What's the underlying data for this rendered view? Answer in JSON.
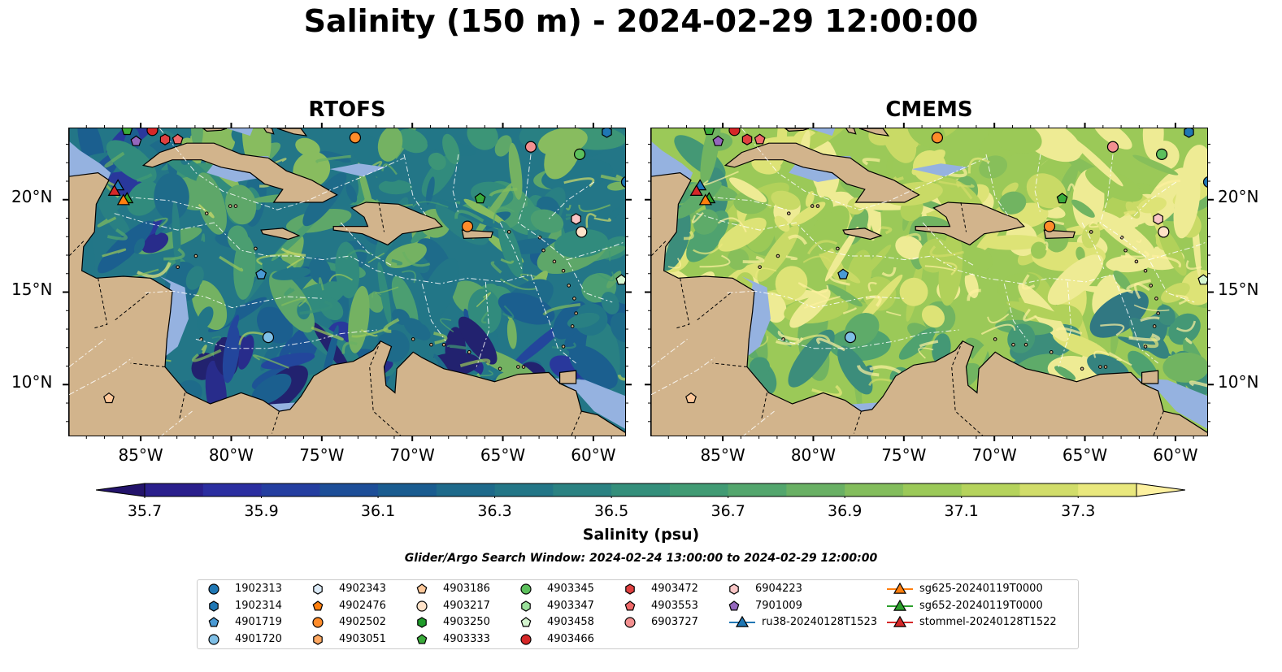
{
  "title": "Salinity (150 m) - 2024-02-29 12:00:00",
  "panels": [
    {
      "name": "rtofs",
      "title": "RTOFS",
      "palette_bias": 0.0
    },
    {
      "name": "cmems",
      "title": "CMEMS",
      "palette_bias": 0.35
    }
  ],
  "lat_ticks": [
    "20°N",
    "15°N",
    "10°N"
  ],
  "lon_ticks": [
    "85°W",
    "80°W",
    "75°W",
    "70°W",
    "65°W",
    "60°W"
  ],
  "colorbar": {
    "label": "Salinity (psu)",
    "ticks": [
      "35.7",
      "35.9",
      "36.1",
      "36.3",
      "36.5",
      "36.7",
      "36.9",
      "37.1",
      "37.3"
    ],
    "colors": [
      "#23136b",
      "#2a1f8c",
      "#2b2ea0",
      "#243ea0",
      "#1d4e98",
      "#1a5c90",
      "#1e6a8b",
      "#237687",
      "#2b8282",
      "#348f7b",
      "#419b74",
      "#53a66d",
      "#69b064",
      "#83bd5c",
      "#9bc958",
      "#b5d35c",
      "#d1dd6a",
      "#e9e87d",
      "#fdf1a0"
    ]
  },
  "search_window": "Glider/Argo Search Window: 2024-02-24 13:00:00 to 2024-02-29 12:00:00",
  "legend": [
    {
      "label": "1902313",
      "marker": "circle",
      "color": "#1f77b4"
    },
    {
      "label": "1902314",
      "marker": "hexagon",
      "color": "#1f77b4"
    },
    {
      "label": "4901719",
      "marker": "pentagon",
      "color": "#4a9ad4"
    },
    {
      "label": "4901720",
      "marker": "circle",
      "color": "#7fbfe6"
    },
    {
      "label": "4902343",
      "marker": "hexagon",
      "color": "#dbeaf7"
    },
    {
      "label": "4902476",
      "marker": "pentagon",
      "color": "#ff7f0e"
    },
    {
      "label": "4902502",
      "marker": "circle",
      "color": "#ff8c2a"
    },
    {
      "label": "4903051",
      "marker": "hexagon",
      "color": "#ffa861"
    },
    {
      "label": "4903186",
      "marker": "pentagon",
      "color": "#ffc89a"
    },
    {
      "label": "4903217",
      "marker": "circle",
      "color": "#ffe2c8"
    },
    {
      "label": "4903250",
      "marker": "hexagon",
      "color": "#1f9b2a"
    },
    {
      "label": "4903333",
      "marker": "pentagon",
      "color": "#3aab3a"
    },
    {
      "label": "4903345",
      "marker": "circle",
      "color": "#5cc05c"
    },
    {
      "label": "4903347",
      "marker": "hexagon",
      "color": "#9ae09a"
    },
    {
      "label": "4903458",
      "marker": "pentagon",
      "color": "#d4f5cf"
    },
    {
      "label": "4903466",
      "marker": "circle",
      "color": "#d62728"
    },
    {
      "label": "4903472",
      "marker": "hexagon",
      "color": "#e04040"
    },
    {
      "label": "4903553",
      "marker": "pentagon",
      "color": "#f06a6a"
    },
    {
      "label": "6903727",
      "marker": "circle",
      "color": "#f39090"
    },
    {
      "label": "6904223",
      "marker": "hexagon",
      "color": "#f9c6c6"
    },
    {
      "label": "7901009",
      "marker": "pentagon",
      "color": "#9467bd"
    },
    {
      "label": "ru38-20240128T1523",
      "marker": "triangle-line",
      "color": "#1f77b4"
    },
    {
      "label": "sg625-20240119T0000",
      "marker": "triangle-line",
      "color": "#ff7f0e"
    },
    {
      "label": "sg652-20240119T0000",
      "marker": "triangle-line",
      "color": "#2ca02c"
    },
    {
      "label": "stommel-20240128T1522",
      "marker": "triangle-line",
      "color": "#d62728"
    }
  ],
  "observations": [
    {
      "lon": -85.8,
      "lat": 23.8,
      "marker": "pentagon",
      "color": "#3aab3a"
    },
    {
      "lon": -84.4,
      "lat": 23.8,
      "marker": "circle",
      "color": "#d62728"
    },
    {
      "lon": -85.3,
      "lat": 23.2,
      "marker": "pentagon",
      "color": "#9467bd"
    },
    {
      "lon": -83.7,
      "lat": 23.3,
      "marker": "hexagon",
      "color": "#e04040"
    },
    {
      "lon": -83.0,
      "lat": 23.3,
      "marker": "pentagon",
      "color": "#f06a6a"
    },
    {
      "lon": -73.2,
      "lat": 23.4,
      "marker": "circle",
      "color": "#ff8c2a"
    },
    {
      "lon": -63.5,
      "lat": 22.9,
      "marker": "circle",
      "color": "#f39090"
    },
    {
      "lon": -60.8,
      "lat": 22.5,
      "marker": "circle",
      "color": "#5cc05c"
    },
    {
      "lon": -59.3,
      "lat": 23.7,
      "marker": "hexagon",
      "color": "#1f77b4"
    },
    {
      "lon": -58.2,
      "lat": 21.0,
      "marker": "circle",
      "color": "#1f77b4"
    },
    {
      "lon": -66.3,
      "lat": 20.1,
      "marker": "pentagon",
      "color": "#3aab3a"
    },
    {
      "lon": -67.0,
      "lat": 18.6,
      "marker": "circle",
      "color": "#ff8c2a"
    },
    {
      "lon": -61.0,
      "lat": 19.0,
      "marker": "hexagon",
      "color": "#f9c6c6"
    },
    {
      "lon": -60.7,
      "lat": 18.3,
      "marker": "circle",
      "color": "#ffe2c8"
    },
    {
      "lon": -78.4,
      "lat": 16.0,
      "marker": "pentagon",
      "color": "#4a9ad4"
    },
    {
      "lon": -58.5,
      "lat": 15.7,
      "marker": "pentagon",
      "color": "#d4f5cf"
    },
    {
      "lon": -78.0,
      "lat": 12.6,
      "marker": "circle",
      "color": "#7fbfe6"
    },
    {
      "lon": -86.8,
      "lat": 9.3,
      "marker": "pentagon",
      "color": "#ffc89a"
    },
    {
      "lon": -86.3,
      "lat": 20.8,
      "marker": "triangle",
      "color": "#1f77b4"
    },
    {
      "lon": -86.5,
      "lat": 20.5,
      "marker": "triangle",
      "color": "#d62728"
    },
    {
      "lon": -85.8,
      "lat": 20.1,
      "marker": "triangle",
      "color": "#2ca02c"
    },
    {
      "lon": -86.0,
      "lat": 20.0,
      "marker": "triangle",
      "color": "#ff7f0e"
    }
  ]
}
